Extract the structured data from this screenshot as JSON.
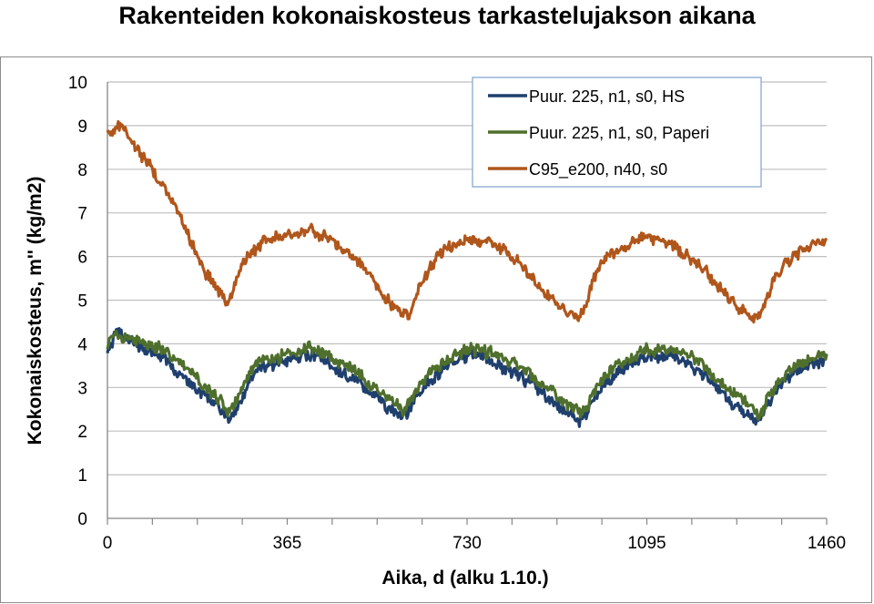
{
  "title": "Rakenteiden kokonaiskosteus tarkastelujakson aikana",
  "colors": {
    "grid": "#bfbfbf",
    "axis": "#868686",
    "legend_border": "#7f9fd0",
    "hs": "#1f3f6e",
    "paperi": "#4f6f2c",
    "c95": "#b0561b"
  },
  "chart_data": {
    "type": "line",
    "title": "Rakenteiden kokonaiskosteus tarkastelujakson aikana",
    "xlabel": "Aika, d (alku 1.10.)",
    "ylabel": "Kokonaiskosteus, m'' (kg/m2)",
    "xlim": [
      0,
      1460
    ],
    "ylim": [
      0,
      10
    ],
    "x_ticks": [
      "0",
      "365",
      "730",
      "1095",
      "1460"
    ],
    "y_ticks": [
      "0",
      "1",
      "2",
      "3",
      "4",
      "5",
      "6",
      "7",
      "8",
      "9",
      "10"
    ],
    "grid": true,
    "legend_position": "top-right",
    "series": [
      {
        "name": "Puur. 225, n1, s0, HS",
        "color": "#1f3f6e",
        "x": [
          0,
          20,
          40,
          80,
          120,
          160,
          200,
          230,
          245,
          260,
          290,
          320,
          365,
          410,
          450,
          500,
          540,
          570,
          590,
          600,
          610,
          640,
          680,
          730,
          760,
          800,
          860,
          910,
          940,
          960,
          970,
          980,
          1010,
          1050,
          1095,
          1140,
          1180,
          1230,
          1270,
          1300,
          1320,
          1330,
          1340,
          1370,
          1410,
          1460
        ],
        "y": [
          3.9,
          4.25,
          4.1,
          3.85,
          3.6,
          3.2,
          2.8,
          2.5,
          2.25,
          2.5,
          3.2,
          3.5,
          3.6,
          3.75,
          3.55,
          3.2,
          2.8,
          2.55,
          2.4,
          2.3,
          2.45,
          3.0,
          3.4,
          3.75,
          3.7,
          3.5,
          3.1,
          2.6,
          2.4,
          2.2,
          2.35,
          2.6,
          3.1,
          3.45,
          3.7,
          3.75,
          3.55,
          3.1,
          2.6,
          2.4,
          2.2,
          2.3,
          2.6,
          3.1,
          3.45,
          3.65
        ]
      },
      {
        "name": "Puur. 225, n1, s0, Paperi",
        "color": "#4f6f2c",
        "x": [
          0,
          20,
          40,
          80,
          120,
          160,
          200,
          230,
          245,
          260,
          290,
          320,
          365,
          410,
          450,
          500,
          540,
          570,
          590,
          600,
          610,
          640,
          680,
          730,
          760,
          800,
          860,
          910,
          940,
          960,
          970,
          980,
          1010,
          1050,
          1095,
          1140,
          1180,
          1230,
          1270,
          1300,
          1320,
          1330,
          1340,
          1370,
          1410,
          1460
        ],
        "y": [
          4.0,
          4.25,
          4.15,
          4.0,
          3.8,
          3.45,
          3.0,
          2.7,
          2.4,
          2.65,
          3.35,
          3.65,
          3.75,
          3.9,
          3.75,
          3.4,
          3.0,
          2.75,
          2.6,
          2.45,
          2.6,
          3.15,
          3.55,
          3.9,
          3.85,
          3.7,
          3.3,
          2.8,
          2.6,
          2.4,
          2.5,
          2.75,
          3.25,
          3.6,
          3.85,
          3.9,
          3.75,
          3.3,
          2.85,
          2.6,
          2.4,
          2.45,
          2.75,
          3.25,
          3.6,
          3.8
        ]
      },
      {
        "name": "C95_e200,  n40, s0",
        "color": "#b0561b",
        "x": [
          0,
          5,
          20,
          40,
          60,
          80,
          100,
          120,
          140,
          160,
          180,
          200,
          220,
          240,
          250,
          265,
          290,
          320,
          350,
          380,
          410,
          440,
          470,
          500,
          530,
          560,
          585,
          600,
          610,
          620,
          640,
          670,
          700,
          730,
          760,
          800,
          840,
          880,
          910,
          935,
          955,
          970,
          985,
          1010,
          1040,
          1070,
          1095,
          1130,
          1170,
          1210,
          1250,
          1280,
          1300,
          1320,
          1335,
          1350,
          1380,
          1410,
          1440,
          1460
        ],
        "y": [
          8.9,
          8.75,
          9.05,
          8.85,
          8.45,
          8.15,
          7.85,
          7.5,
          7.05,
          6.6,
          6.05,
          5.6,
          5.3,
          5.0,
          5.05,
          5.6,
          6.05,
          6.35,
          6.45,
          6.5,
          6.6,
          6.45,
          6.25,
          6.0,
          5.6,
          5.1,
          4.85,
          4.7,
          4.6,
          4.9,
          5.45,
          6.0,
          6.3,
          6.4,
          6.35,
          6.2,
          5.8,
          5.3,
          4.95,
          4.75,
          4.6,
          4.85,
          5.45,
          5.95,
          6.2,
          6.35,
          6.45,
          6.35,
          6.1,
          5.7,
          5.2,
          4.85,
          4.65,
          4.55,
          4.9,
          5.4,
          5.9,
          6.1,
          6.3,
          6.3
        ]
      }
    ]
  }
}
